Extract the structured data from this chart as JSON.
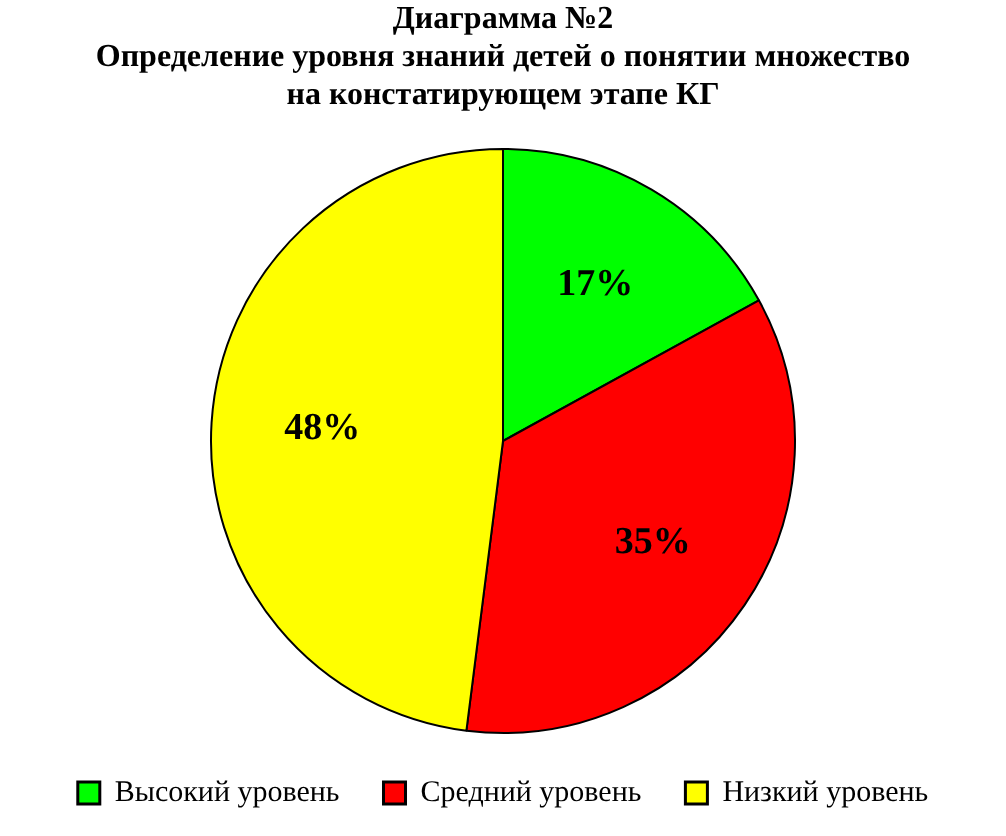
{
  "chart_data": {
    "type": "pie",
    "title": "Диаграмма №2",
    "subtitle": "Определение уровня знаний детей о понятии множество на констатирующем этапе КГ",
    "categories": [
      "Высокий уровень",
      "Средний уровень",
      "Низкий уровень"
    ],
    "values": [
      17,
      35,
      48
    ],
    "colors": [
      "#00ff00",
      "#ff0000",
      "#ffff00"
    ],
    "value_labels": [
      "17%",
      "35%",
      "48%"
    ],
    "legend": "bottom"
  }
}
